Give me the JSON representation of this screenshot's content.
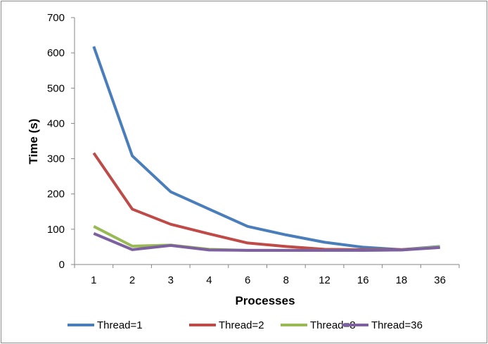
{
  "chart_data": {
    "type": "line",
    "title": "",
    "xlabel": "Processes",
    "ylabel": "Time (s)",
    "categories": [
      "1",
      "2",
      "3",
      "4",
      "6",
      "8",
      "12",
      "16",
      "18",
      "36"
    ],
    "ylim": [
      0,
      700
    ],
    "yticks": [
      0,
      100,
      200,
      300,
      400,
      500,
      600,
      700
    ],
    "grid": false,
    "legend_position": "bottom",
    "series": [
      {
        "name": "Thread=1",
        "color": "#4a7ebb",
        "values": [
          618,
          308,
          206,
          157,
          108,
          84,
          63,
          49,
          42,
          51
        ]
      },
      {
        "name": "Thread=2",
        "color": "#be4b48",
        "values": [
          316,
          157,
          114,
          87,
          61,
          51,
          43,
          42,
          42,
          49
        ]
      },
      {
        "name": "Thread=8",
        "color": "#98b954",
        "values": [
          108,
          52,
          55,
          43,
          40,
          40,
          40,
          40,
          41,
          50
        ]
      },
      {
        "name": "Thread=36",
        "color": "#7d60a0",
        "values": [
          88,
          42,
          54,
          41,
          40,
          40,
          40,
          40,
          41,
          48
        ]
      }
    ]
  }
}
